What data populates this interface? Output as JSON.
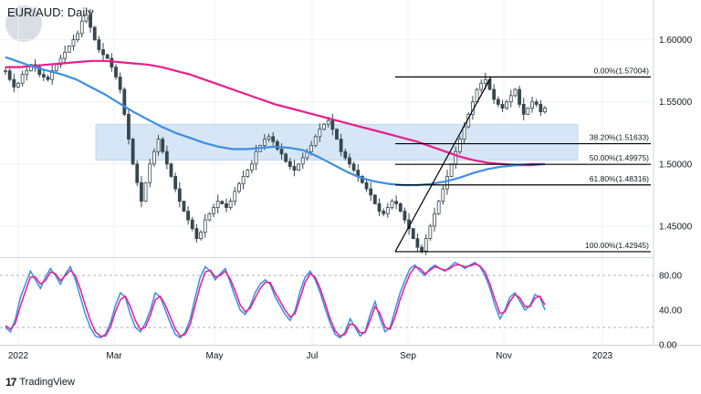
{
  "header": {
    "title": "EUR/AUD: Daily"
  },
  "footer": {
    "brand": "TradingView"
  },
  "colors": {
    "up": "#26a69a",
    "down": "#26323f",
    "candle_up": "#37474f",
    "candle_down": "#37474f",
    "ma_slow": "#e91e8c",
    "ma_fast": "#3d8ee6",
    "zone": "#d6e6f7",
    "stoch_k": "#3d8ee6",
    "stoch_d": "#e91e8c",
    "fib_line": "#000000"
  },
  "chart_data": [
    {
      "type": "candlestick",
      "title": "EUR/AUD: Daily",
      "x_ticks": [
        "2022",
        "Mar",
        "May",
        "Jul",
        "Sep",
        "Nov",
        "2023"
      ],
      "y_ticks": [
        "1.60000",
        "1.55000",
        "1.50000",
        "1.45000"
      ],
      "ylim": [
        1.425,
        1.632
      ],
      "grid": true,
      "closes": [
        1.575,
        1.568,
        1.562,
        1.565,
        1.572,
        1.575,
        1.58,
        1.578,
        1.572,
        1.57,
        1.568,
        1.575,
        1.58,
        1.585,
        1.59,
        1.595,
        1.6,
        1.605,
        1.615,
        1.62,
        1.61,
        1.6,
        1.592,
        1.588,
        1.585,
        1.578,
        1.57,
        1.56,
        1.54,
        1.52,
        1.5,
        1.485,
        1.47,
        1.485,
        1.5,
        1.51,
        1.52,
        1.51,
        1.5,
        1.49,
        1.48,
        1.47,
        1.462,
        1.455,
        1.448,
        1.44,
        1.445,
        1.455,
        1.46,
        1.465,
        1.47,
        1.468,
        1.465,
        1.47,
        1.478,
        1.484,
        1.49,
        1.495,
        1.5,
        1.51,
        1.515,
        1.52,
        1.522,
        1.518,
        1.512,
        1.508,
        1.502,
        1.498,
        1.495,
        1.5,
        1.505,
        1.51,
        1.515,
        1.522,
        1.528,
        1.532,
        1.535,
        1.528,
        1.52,
        1.51,
        1.505,
        1.5,
        1.495,
        1.49,
        1.485,
        1.48,
        1.475,
        1.468,
        1.462,
        1.46,
        1.465,
        1.47,
        1.468,
        1.462,
        1.455,
        1.448,
        1.44,
        1.433,
        1.43,
        1.44,
        1.45,
        1.46,
        1.47,
        1.48,
        1.49,
        1.5,
        1.51,
        1.52,
        1.53,
        1.54,
        1.55,
        1.56,
        1.565,
        1.568,
        1.56,
        1.552,
        1.548,
        1.545,
        1.55,
        1.555,
        1.56,
        1.548,
        1.54,
        1.545,
        1.55,
        1.548,
        1.542,
        1.545
      ],
      "moving_averages": [
        {
          "color_key": "ma_slow",
          "values": [
            1.578,
            1.578,
            1.579,
            1.58,
            1.581,
            1.582,
            1.583,
            1.583,
            1.582,
            1.581,
            1.58,
            1.578,
            1.575,
            1.572,
            1.568,
            1.564,
            1.56,
            1.556,
            1.552,
            1.548,
            1.545,
            1.542,
            1.539,
            1.536,
            1.533,
            1.53,
            1.527,
            1.524,
            1.521,
            1.518,
            1.514,
            1.51,
            1.506,
            1.503,
            1.501,
            1.5,
            1.499,
            1.499,
            1.5
          ]
        },
        {
          "color_key": "ma_fast",
          "values": [
            1.586,
            1.582,
            1.578,
            1.575,
            1.572,
            1.568,
            1.562,
            1.556,
            1.549,
            1.542,
            1.536,
            1.53,
            1.525,
            1.521,
            1.517,
            1.514,
            1.512,
            1.512,
            1.513,
            1.514,
            1.513,
            1.511,
            1.506,
            1.5,
            1.494,
            1.489,
            1.486,
            1.484,
            1.483,
            1.483,
            1.484,
            1.486,
            1.489,
            1.493,
            1.496,
            1.498,
            1.499,
            1.5,
            1.5
          ]
        }
      ],
      "zone": {
        "low": 1.503,
        "high": 1.532
      },
      "fibonacci": [
        {
          "label": "0.00%(1.57004)",
          "price": 1.57004
        },
        {
          "label": "38.20%(1.51633)",
          "price": 1.51633
        },
        {
          "label": "50.00%(1.49975)",
          "price": 1.49975
        },
        {
          "label": "61.80%(1.48316)",
          "price": 1.48316
        },
        {
          "label": "100.00%(1.42945)",
          "price": 1.42945
        }
      ]
    },
    {
      "type": "line",
      "name": "stochastic",
      "y_ticks": [
        "80.00",
        "40.00",
        "0.00"
      ],
      "ylim": [
        0,
        100
      ],
      "levels": [
        80,
        20
      ],
      "series": [
        {
          "color_key": "stoch_k",
          "values": [
            20,
            15,
            30,
            55,
            70,
            85,
            75,
            65,
            78,
            88,
            80,
            70,
            82,
            90,
            75,
            55,
            35,
            20,
            10,
            8,
            12,
            25,
            45,
            60,
            55,
            35,
            20,
            15,
            25,
            40,
            60,
            55,
            40,
            25,
            12,
            8,
            15,
            30,
            55,
            78,
            90,
            85,
            75,
            82,
            88,
            72,
            55,
            40,
            35,
            45,
            60,
            70,
            75,
            70,
            55,
            45,
            35,
            28,
            40,
            62,
            78,
            85,
            75,
            60,
            42,
            25,
            12,
            8,
            15,
            30,
            20,
            10,
            15,
            35,
            50,
            30,
            15,
            20,
            40,
            60,
            75,
            88,
            92,
            85,
            80,
            88,
            92,
            88,
            85,
            90,
            95,
            92,
            88,
            92,
            95,
            90,
            80,
            65,
            45,
            30,
            40,
            55,
            60,
            50,
            40,
            45,
            58,
            55,
            40
          ]
        },
        {
          "color_key": "stoch_d",
          "values": [
            22,
            18,
            25,
            45,
            62,
            78,
            78,
            70,
            74,
            84,
            82,
            74,
            80,
            86,
            80,
            64,
            45,
            28,
            15,
            10,
            10,
            20,
            38,
            52,
            56,
            44,
            28,
            18,
            20,
            34,
            52,
            56,
            46,
            32,
            18,
            10,
            12,
            24,
            46,
            68,
            84,
            86,
            78,
            80,
            85,
            76,
            62,
            46,
            38,
            42,
            54,
            65,
            72,
            72,
            60,
            50,
            40,
            32,
            36,
            54,
            72,
            82,
            78,
            65,
            48,
            30,
            16,
            10,
            12,
            24,
            22,
            14,
            14,
            28,
            44,
            36,
            20,
            18,
            32,
            52,
            68,
            82,
            90,
            88,
            82,
            86,
            90,
            88,
            86,
            88,
            92,
            92,
            90,
            91,
            93,
            91,
            84,
            70,
            52,
            36,
            38,
            50,
            58,
            54,
            44,
            44,
            54,
            56,
            46
          ]
        }
      ]
    }
  ]
}
